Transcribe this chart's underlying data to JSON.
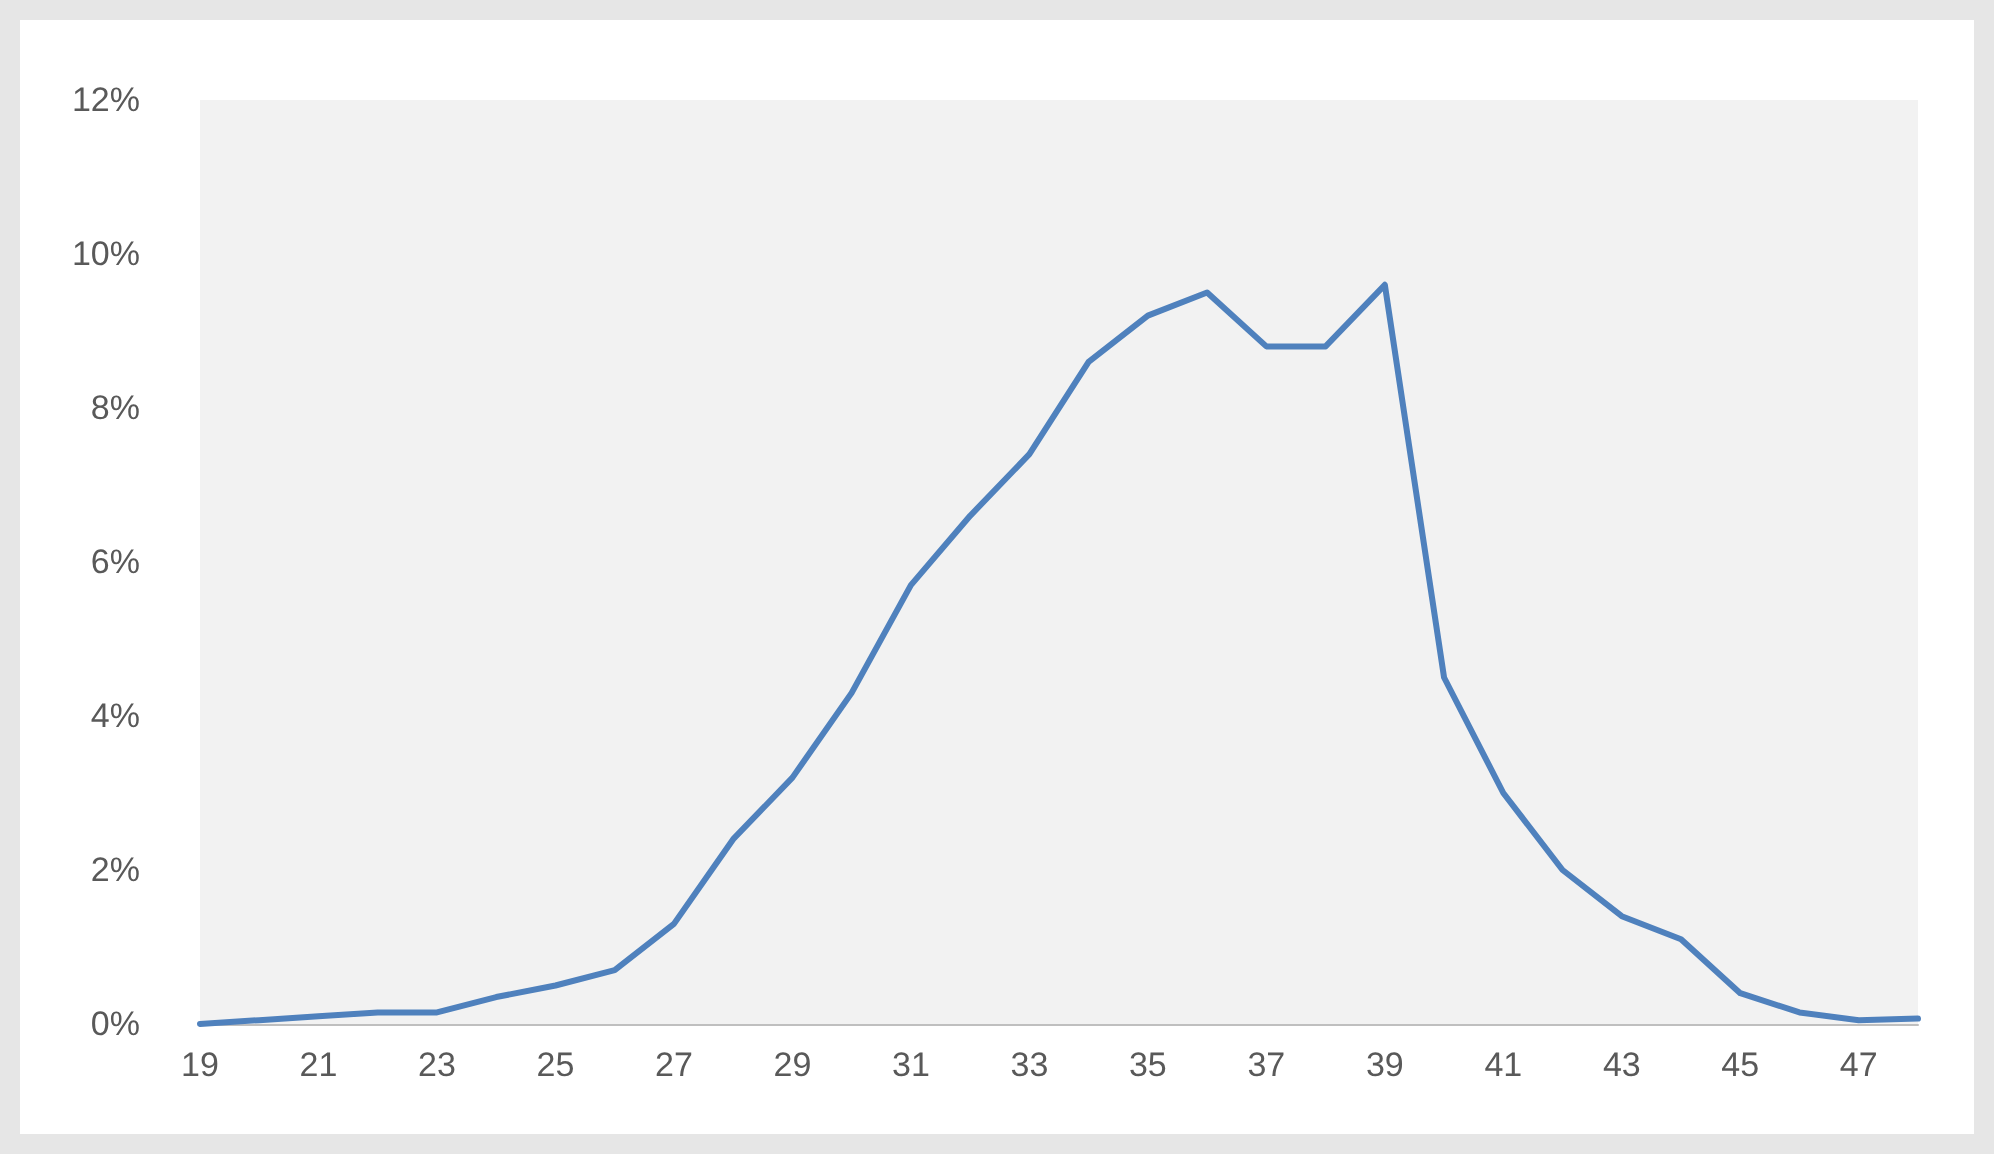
{
  "chart_data": {
    "type": "line",
    "categories": [
      "19",
      null,
      "21",
      null,
      "23",
      null,
      "25",
      null,
      "27",
      null,
      "29",
      null,
      "31",
      null,
      "33",
      null,
      "35",
      null,
      "37",
      null,
      "39",
      null,
      "41",
      null,
      "43",
      null,
      "45",
      null,
      "47",
      null
    ],
    "series": [
      {
        "color": "#4f81bd",
        "values": [
          0.0,
          0.05,
          0.1,
          0.15,
          0.15,
          0.35,
          0.5,
          0.7,
          1.3,
          2.4,
          3.2,
          4.3,
          5.7,
          6.6,
          7.4,
          8.6,
          9.2,
          9.5,
          8.8,
          8.8,
          9.6,
          4.5,
          3.0,
          2.0,
          1.4,
          1.1,
          0.4,
          0.15,
          0.05,
          0.07
        ]
      }
    ],
    "ylim": [
      0,
      12
    ],
    "yticks": [
      {
        "value": 0,
        "label": "0%"
      },
      {
        "value": 2,
        "label": "2%"
      },
      {
        "value": 4,
        "label": "4%"
      },
      {
        "value": 6,
        "label": "6%"
      },
      {
        "value": 8,
        "label": "8%"
      },
      {
        "value": 10,
        "label": "10%"
      },
      {
        "value": 12,
        "label": "12%"
      }
    ],
    "grid": false,
    "marker": "none",
    "line_style": "solid"
  }
}
